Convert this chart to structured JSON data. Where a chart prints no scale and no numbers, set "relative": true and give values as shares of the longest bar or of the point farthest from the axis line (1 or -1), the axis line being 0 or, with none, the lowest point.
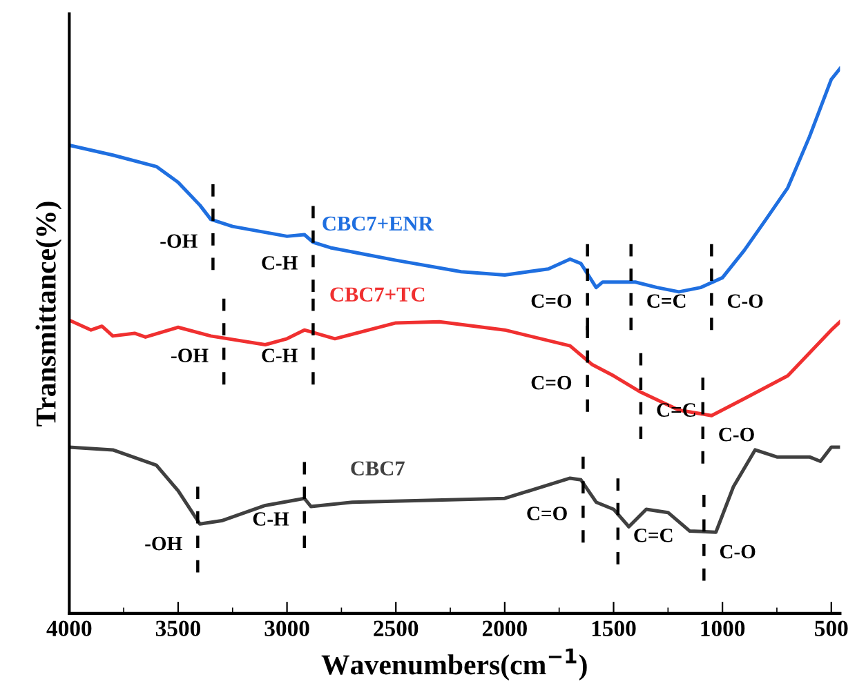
{
  "chart_data": {
    "type": "line",
    "relative": true,
    "xlabel": "Wavenumbers(cm$^{−1}$)",
    "ylabel": "Transmittance(%)",
    "xlim": [
      4000,
      460
    ],
    "xticks": [
      4000,
      3500,
      3000,
      2500,
      2000,
      1500,
      1000,
      500
    ],
    "legend": false,
    "grid": false,
    "tick_labels": "x",
    "series": [
      {
        "name": "CBC7+ENR",
        "color": "#1f6fe0",
        "x": [
          4000,
          3800,
          3600,
          3500,
          3400,
          3350,
          3250,
          3000,
          2920,
          2880,
          2800,
          2500,
          2200,
          2000,
          1800,
          1700,
          1650,
          1580,
          1550,
          1400,
          1300,
          1200,
          1100,
          1000,
          900,
          800,
          700,
          600,
          500,
          460
        ],
        "values": [
          0.859,
          0.841,
          0.82,
          0.791,
          0.749,
          0.723,
          0.71,
          0.692,
          0.695,
          0.681,
          0.671,
          0.648,
          0.627,
          0.621,
          0.632,
          0.65,
          0.642,
          0.598,
          0.608,
          0.608,
          0.598,
          0.59,
          0.598,
          0.616,
          0.666,
          0.723,
          0.781,
          0.875,
          0.98,
          1.0
        ]
      },
      {
        "name": "CBC7+TC",
        "color": "#f03030",
        "x": [
          4000,
          3900,
          3850,
          3800,
          3700,
          3650,
          3500,
          3350,
          3100,
          3000,
          2920,
          2780,
          2500,
          2300,
          2000,
          1700,
          1600,
          1500,
          1380,
          1200,
          1050,
          900,
          700,
          500,
          460
        ],
        "values": [
          0.538,
          0.52,
          0.527,
          0.509,
          0.514,
          0.507,
          0.525,
          0.509,
          0.493,
          0.504,
          0.52,
          0.504,
          0.533,
          0.535,
          0.52,
          0.491,
          0.457,
          0.436,
          0.407,
          0.373,
          0.363,
          0.394,
          0.436,
          0.52,
          0.535
        ]
      },
      {
        "name": "CBC7",
        "color": "#404040",
        "x": [
          4000,
          3800,
          3600,
          3500,
          3400,
          3300,
          3100,
          2920,
          2890,
          2700,
          2000,
          1700,
          1650,
          1580,
          1500,
          1430,
          1350,
          1250,
          1150,
          1030,
          950,
          850,
          750,
          600,
          550,
          500,
          460
        ],
        "values": [
          0.305,
          0.3,
          0.272,
          0.225,
          0.164,
          0.17,
          0.198,
          0.211,
          0.196,
          0.204,
          0.211,
          0.248,
          0.245,
          0.204,
          0.191,
          0.159,
          0.191,
          0.185,
          0.151,
          0.149,
          0.232,
          0.3,
          0.287,
          0.287,
          0.279,
          0.305,
          0.305
        ]
      }
    ],
    "annotations": [
      {
        "text": "-OH",
        "x": 3340,
        "y": 0.72
      },
      {
        "text": "C-H",
        "x": 2880,
        "y": 0.68
      },
      {
        "text": "C=O",
        "x": 1620,
        "y": 0.61
      },
      {
        "text": "C=C",
        "x": 1420,
        "y": 0.61
      },
      {
        "text": "C-O",
        "x": 1050,
        "y": 0.61
      },
      {
        "text": "-OH",
        "x": 3290,
        "y": 0.51
      },
      {
        "text": "C-H",
        "x": 2880,
        "y": 0.51
      },
      {
        "text": "C=O",
        "x": 1620,
        "y": 0.46
      },
      {
        "text": "C=C",
        "x": 1375,
        "y": 0.41
      },
      {
        "text": "C-O",
        "x": 1090,
        "y": 0.365
      },
      {
        "text": "-OH",
        "x": 3410,
        "y": 0.165
      },
      {
        "text": "C-H",
        "x": 2920,
        "y": 0.21
      },
      {
        "text": "C=O",
        "x": 1640,
        "y": 0.22
      },
      {
        "text": "C=C",
        "x": 1480,
        "y": 0.18
      },
      {
        "text": "C-O",
        "x": 1085,
        "y": 0.15
      }
    ]
  }
}
